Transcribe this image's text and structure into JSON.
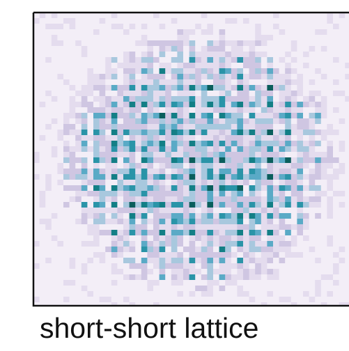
{
  "caption": "short-short lattice"
}
